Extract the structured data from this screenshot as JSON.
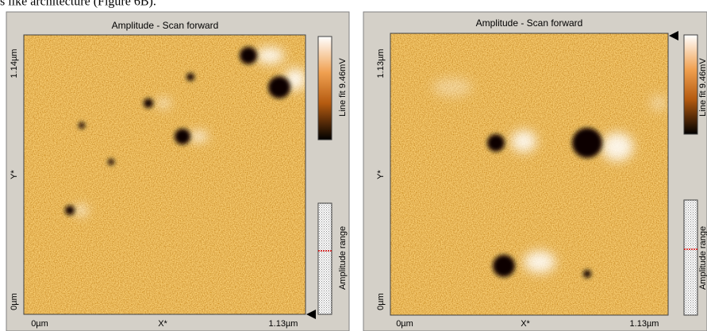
{
  "caption": "s like architecture (Figure 6B).",
  "panels": [
    {
      "title": "Amplitude - Scan forward",
      "y_axis": {
        "top": "1.14µm",
        "middle": "Y*",
        "bottom": "0µm"
      },
      "x_axis": {
        "left": "0µm",
        "middle": "X*",
        "right": "1.13µm"
      },
      "colorbar_label": "Line fit 9.46mV",
      "range_label": "Amplitude range"
    },
    {
      "title": "Amplitude - Scan forward",
      "y_axis": {
        "top": "1.13µm",
        "middle": "Y*",
        "bottom": "0µm"
      },
      "x_axis": {
        "left": "0µm",
        "middle": "X*",
        "right": "1.13µm"
      },
      "colorbar_label": "Line fit 9.46mV",
      "range_label": "Amplitude range"
    }
  ]
}
